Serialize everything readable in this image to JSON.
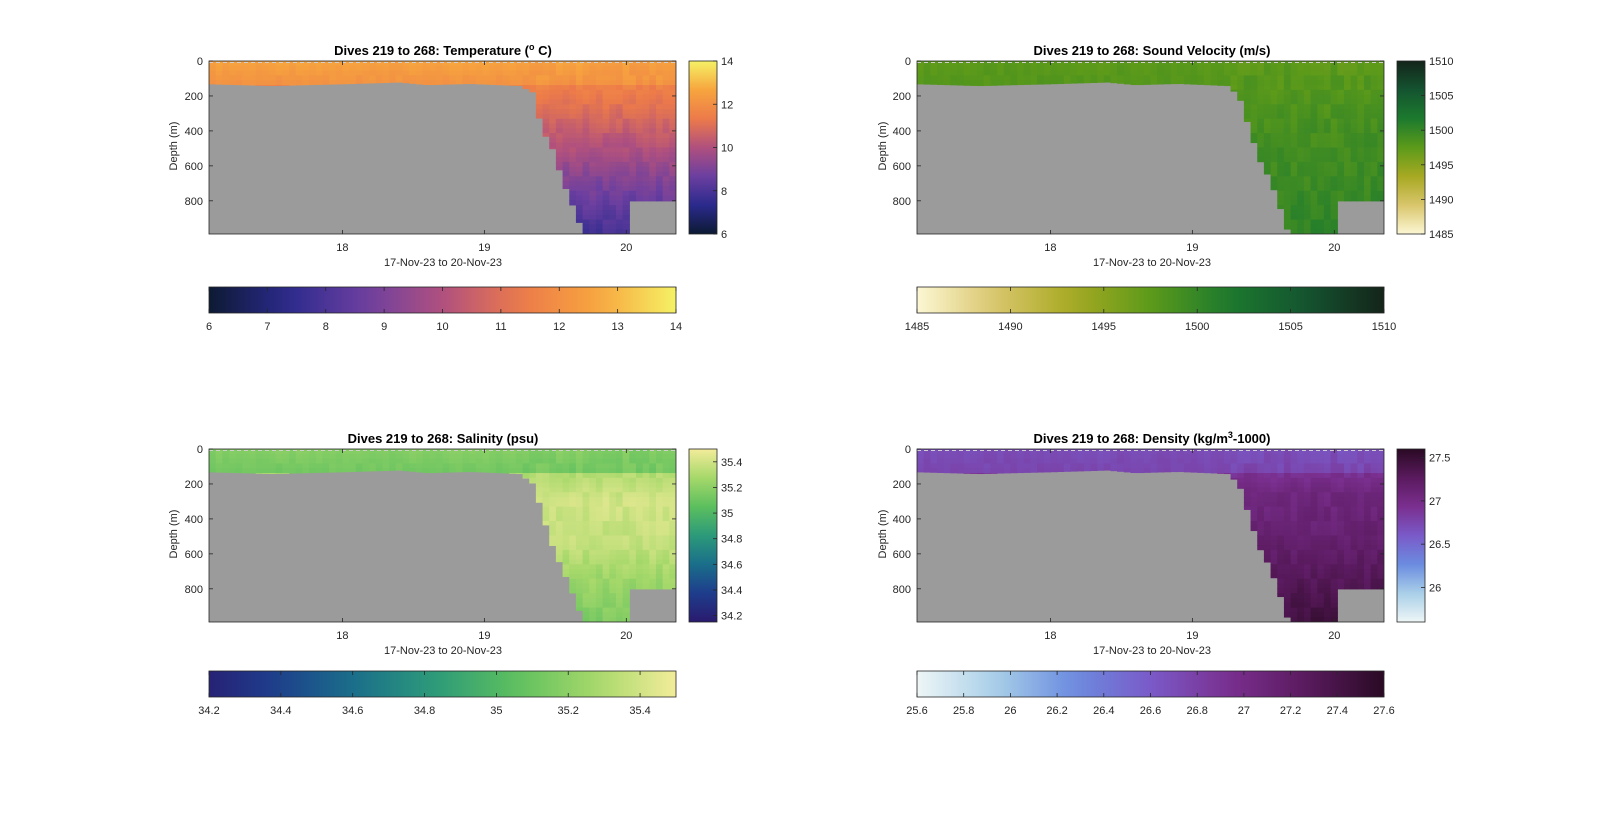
{
  "figure": {
    "background": "#ffffff"
  },
  "chart_data": [
    {
      "type": "heatmap",
      "id": "temperature",
      "title": "Dives 219 to 268: Temperature (",
      "title_sup": "o",
      "title_end": " C)",
      "xlabel": "17-Nov-23 to 20-Nov-23",
      "ylabel": "Depth (m)",
      "x_ticks": [
        "18",
        "19",
        "20"
      ],
      "x_tick_values": [
        18,
        19,
        20
      ],
      "xlim": [
        17.06,
        20.35
      ],
      "y_ticks": [
        "0",
        "200",
        "400",
        "600",
        "800"
      ],
      "y_tick_values": [
        0,
        200,
        400,
        600,
        800
      ],
      "ylim": [
        0,
        990
      ],
      "colorbar": {
        "range": [
          6,
          14
        ],
        "ticks": [
          "6",
          "8",
          "10",
          "12",
          "14"
        ],
        "tick_values": [
          6,
          8,
          10,
          12,
          14
        ],
        "colors": [
          "#0d1a33",
          "#2a2a8c",
          "#6b3fa0",
          "#b0507e",
          "#ec7a4a",
          "#f7a53e",
          "#f5f165"
        ]
      },
      "h_colorbar": {
        "ticks": [
          "6",
          "7",
          "8",
          "9",
          "10",
          "11",
          "12",
          "13",
          "14"
        ],
        "tick_values": [
          6,
          7,
          8,
          9,
          10,
          11,
          12,
          13,
          14
        ]
      },
      "seafloor_color": "#9b9b9b",
      "surface_layer": {
        "value": 12.1,
        "bottom_depth": 125,
        "surface_value": 12.6
      },
      "deep_profile": [
        {
          "depth": 130,
          "value": 11.6
        },
        {
          "depth": 300,
          "value": 10.9
        },
        {
          "depth": 500,
          "value": 10.0
        },
        {
          "depth": 700,
          "value": 9.0
        },
        {
          "depth": 990,
          "value": 7.8
        }
      ],
      "bathymetry": [
        [
          17.06,
          130
        ],
        [
          17.5,
          140
        ],
        [
          18.0,
          130
        ],
        [
          18.4,
          120
        ],
        [
          18.6,
          135
        ],
        [
          18.9,
          128
        ],
        [
          19.25,
          140
        ],
        [
          19.35,
          180
        ],
        [
          19.4,
          380
        ],
        [
          19.48,
          500
        ],
        [
          19.55,
          680
        ],
        [
          19.62,
          820
        ],
        [
          19.7,
          990
        ],
        [
          20.0,
          990
        ],
        [
          20.02,
          800
        ],
        [
          20.35,
          800
        ]
      ]
    },
    {
      "type": "heatmap",
      "id": "sound_velocity",
      "title": "Dives 219 to 268: Sound Velocity (m/s)",
      "xlabel": "17-Nov-23 to 20-Nov-23",
      "ylabel": "Depth (m)",
      "x_ticks": [
        "18",
        "19",
        "20"
      ],
      "x_tick_values": [
        18,
        19,
        20
      ],
      "xlim": [
        17.06,
        20.35
      ],
      "y_ticks": [
        "0",
        "200",
        "400",
        "600",
        "800"
      ],
      "y_tick_values": [
        0,
        200,
        400,
        600,
        800
      ],
      "ylim": [
        0,
        990
      ],
      "colorbar": {
        "range": [
          1485,
          1510
        ],
        "ticks": [
          "1485",
          "1490",
          "1495",
          "1500",
          "1505",
          "1510"
        ],
        "tick_values": [
          1485,
          1490,
          1495,
          1500,
          1505,
          1510
        ],
        "colors": [
          "#fcf7d4",
          "#d9c66c",
          "#a7a922",
          "#5c9a1a",
          "#1c7a2e",
          "#145430",
          "#14241a"
        ]
      },
      "h_colorbar": {
        "ticks": [
          "1485",
          "1490",
          "1495",
          "1500",
          "1505",
          "1510"
        ],
        "tick_values": [
          1485,
          1490,
          1495,
          1500,
          1505,
          1510
        ]
      },
      "seafloor_color": "#9b9b9b",
      "surface_layer": {
        "value": 1498.0,
        "bottom_depth": 125,
        "surface_value": 1497.5
      },
      "deep_profile": [
        {
          "depth": 130,
          "value": 1497.8
        },
        {
          "depth": 400,
          "value": 1499.0
        },
        {
          "depth": 700,
          "value": 1499.6
        },
        {
          "depth": 990,
          "value": 1500.4
        }
      ],
      "bathymetry": [
        [
          17.06,
          130
        ],
        [
          17.5,
          140
        ],
        [
          18.0,
          130
        ],
        [
          18.4,
          120
        ],
        [
          18.6,
          135
        ],
        [
          18.9,
          128
        ],
        [
          19.25,
          140
        ],
        [
          19.33,
          200
        ],
        [
          19.4,
          380
        ],
        [
          19.47,
          560
        ],
        [
          19.55,
          680
        ],
        [
          19.62,
          840
        ],
        [
          19.68,
          990
        ],
        [
          20.0,
          990
        ],
        [
          20.02,
          800
        ],
        [
          20.35,
          800
        ]
      ]
    },
    {
      "type": "heatmap",
      "id": "salinity",
      "title": "Dives 219 to 268: Salinity (psu)",
      "xlabel": "17-Nov-23 to 20-Nov-23",
      "ylabel": "Depth (m)",
      "x_ticks": [
        "18",
        "19",
        "20"
      ],
      "x_tick_values": [
        18,
        19,
        20
      ],
      "xlim": [
        17.06,
        20.35
      ],
      "y_ticks": [
        "0",
        "200",
        "400",
        "600",
        "800"
      ],
      "y_tick_values": [
        0,
        200,
        400,
        600,
        800
      ],
      "ylim": [
        0,
        990
      ],
      "colorbar": {
        "range": [
          34.15,
          35.5
        ],
        "ticks": [
          "34.2",
          "34.4",
          "34.6",
          "34.8",
          "35",
          "35.2",
          "35.4"
        ],
        "tick_values": [
          34.2,
          34.4,
          34.6,
          34.8,
          35.0,
          35.2,
          35.4
        ],
        "colors": [
          "#2a1a6e",
          "#1e3d8c",
          "#1a6e8a",
          "#2c9a7a",
          "#5cbf5e",
          "#a5d86a",
          "#f3ec9a"
        ]
      },
      "h_colorbar": {
        "ticks": [
          "34.2",
          "34.4",
          "34.6",
          "34.8",
          "35",
          "35.2",
          "35.4"
        ],
        "tick_values": [
          34.2,
          34.4,
          34.6,
          34.8,
          35.0,
          35.2,
          35.4
        ]
      },
      "h_colorbar_range": [
        34.2,
        35.5
      ],
      "seafloor_color": "#9b9b9b",
      "surface_layer": {
        "value": 35.12,
        "bottom_depth": 125,
        "surface_value": 35.18
      },
      "deep_profile": [
        {
          "depth": 130,
          "value": 35.3
        },
        {
          "depth": 300,
          "value": 35.4
        },
        {
          "depth": 550,
          "value": 35.36
        },
        {
          "depth": 750,
          "value": 35.25
        },
        {
          "depth": 990,
          "value": 35.15
        }
      ],
      "bathymetry": [
        [
          17.06,
          130
        ],
        [
          17.5,
          140
        ],
        [
          18.0,
          130
        ],
        [
          18.4,
          120
        ],
        [
          18.6,
          135
        ],
        [
          18.9,
          128
        ],
        [
          19.25,
          140
        ],
        [
          19.35,
          200
        ],
        [
          19.42,
          400
        ],
        [
          19.5,
          600
        ],
        [
          19.55,
          680
        ],
        [
          19.62,
          820
        ],
        [
          19.7,
          990
        ],
        [
          20.0,
          990
        ],
        [
          20.02,
          800
        ],
        [
          20.35,
          800
        ]
      ]
    },
    {
      "type": "heatmap",
      "id": "density",
      "title": "Dives 219 to 268: Density (kg/m",
      "title_sup": "3",
      "title_end": "-1000)",
      "xlabel": "17-Nov-23 to 20-Nov-23",
      "ylabel": "Depth (m)",
      "x_ticks": [
        "18",
        "19",
        "20"
      ],
      "x_tick_values": [
        18,
        19,
        20
      ],
      "xlim": [
        17.06,
        20.35
      ],
      "y_ticks": [
        "0",
        "200",
        "400",
        "600",
        "800"
      ],
      "y_tick_values": [
        0,
        200,
        400,
        600,
        800
      ],
      "ylim": [
        0,
        990
      ],
      "colorbar": {
        "range": [
          25.6,
          27.6
        ],
        "ticks": [
          "26",
          "26.5",
          "27",
          "27.5"
        ],
        "tick_values": [
          26,
          26.5,
          27,
          27.5
        ],
        "colors": [
          "#eef6f6",
          "#a9cfe8",
          "#6b8ce0",
          "#7a5ac8",
          "#7a2f8f",
          "#5a1a5e",
          "#2a0a24"
        ]
      },
      "h_colorbar": {
        "ticks": [
          "25.6",
          "25.8",
          "26",
          "26.2",
          "26.4",
          "26.6",
          "26.8",
          "27",
          "27.2",
          "27.4",
          "27.6"
        ],
        "tick_values": [
          25.6,
          25.8,
          26.0,
          26.2,
          26.4,
          26.6,
          26.8,
          27.0,
          27.2,
          27.4,
          27.6
        ]
      },
      "seafloor_color": "#9b9b9b",
      "surface_layer": {
        "value": 26.75,
        "bottom_depth": 125,
        "surface_value": 26.7
      },
      "deep_profile": [
        {
          "depth": 130,
          "value": 26.9
        },
        {
          "depth": 250,
          "value": 27.05
        },
        {
          "depth": 500,
          "value": 27.15
        },
        {
          "depth": 750,
          "value": 27.3
        },
        {
          "depth": 990,
          "value": 27.45
        }
      ],
      "bathymetry": [
        [
          17.06,
          130
        ],
        [
          17.5,
          140
        ],
        [
          18.0,
          130
        ],
        [
          18.4,
          120
        ],
        [
          18.6,
          135
        ],
        [
          18.9,
          128
        ],
        [
          19.25,
          140
        ],
        [
          19.33,
          200
        ],
        [
          19.4,
          380
        ],
        [
          19.47,
          560
        ],
        [
          19.55,
          680
        ],
        [
          19.62,
          840
        ],
        [
          19.68,
          990
        ],
        [
          20.0,
          990
        ],
        [
          20.02,
          800
        ],
        [
          20.35,
          800
        ]
      ]
    }
  ]
}
